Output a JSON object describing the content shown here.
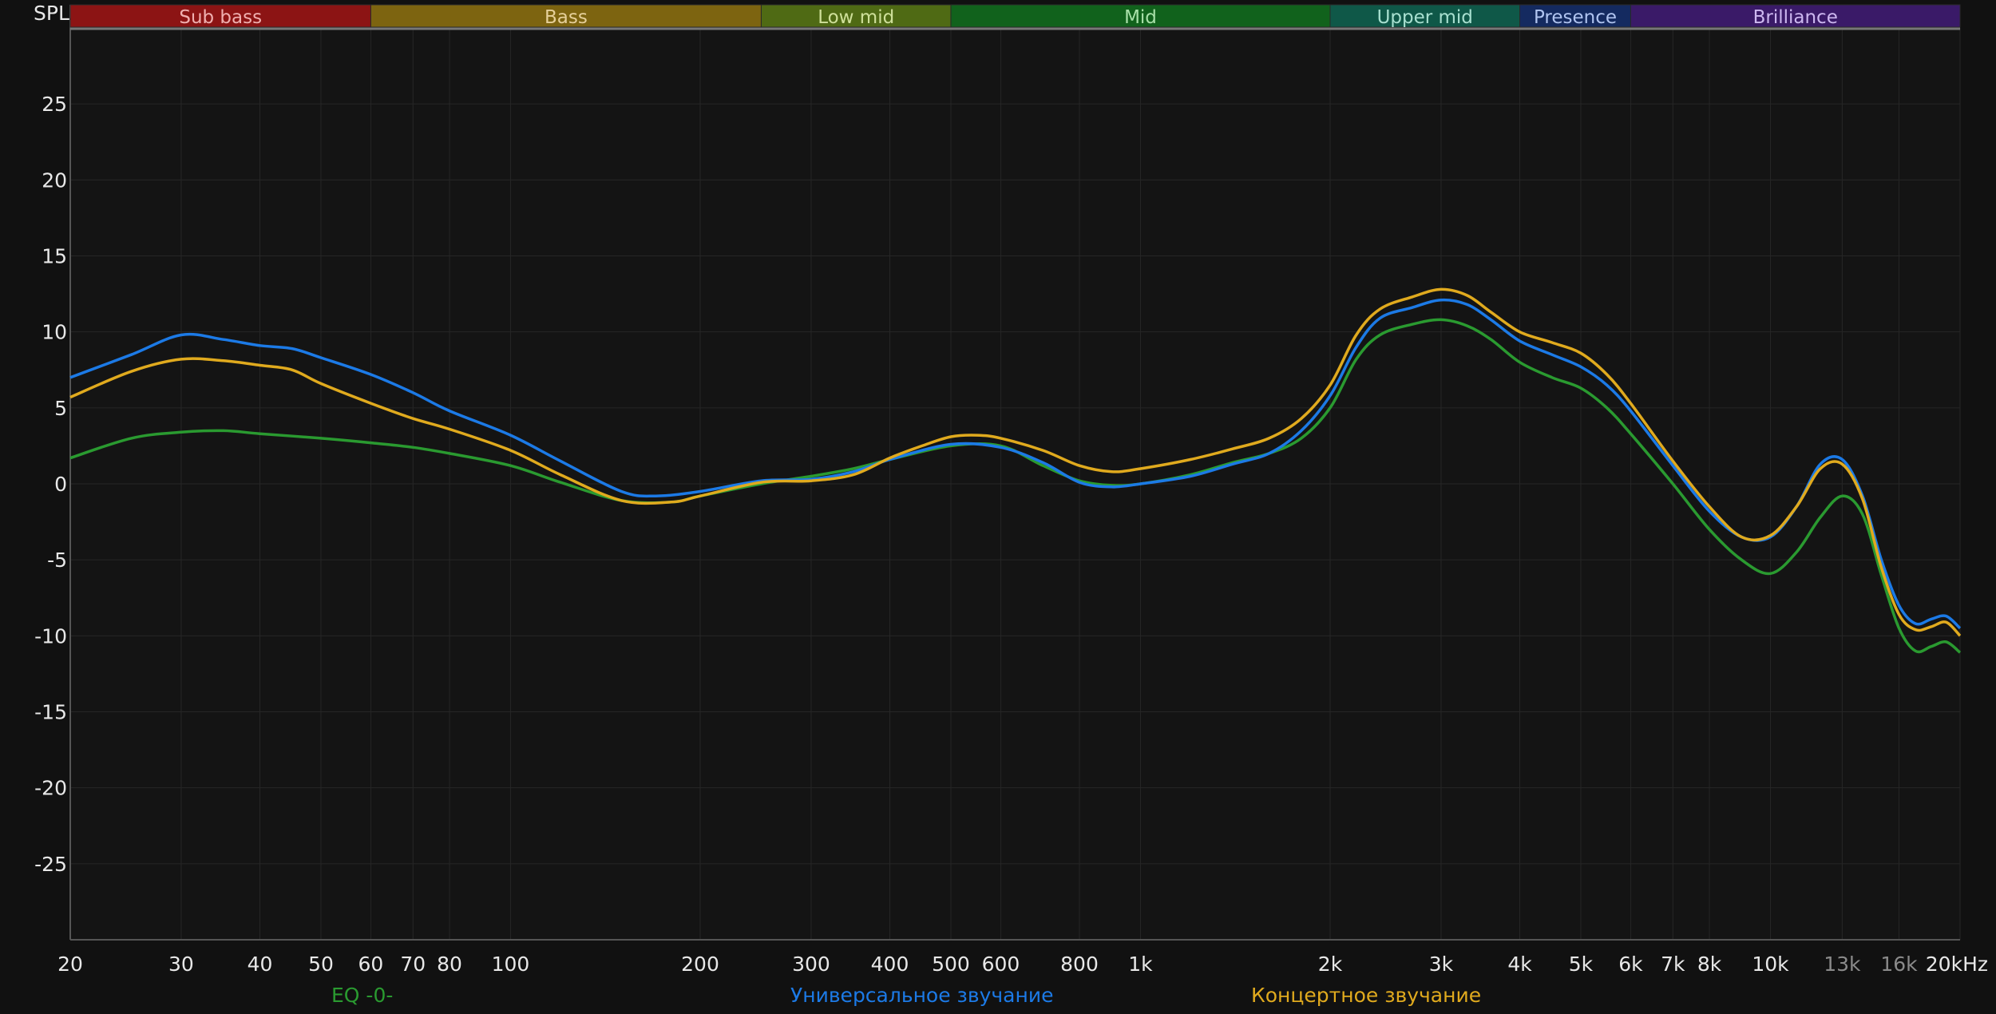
{
  "chart_data": {
    "type": "line",
    "ylabel": "SPL",
    "xscale": "log",
    "xlim": [
      20,
      20000
    ],
    "ylim": [
      -30,
      30
    ],
    "grid": true,
    "legend_placement": "bottom",
    "bands": [
      {
        "name": "Sub bass",
        "from": 20,
        "to": 60,
        "color": "#8c1414",
        "text_color": "#f0b0b0"
      },
      {
        "name": "Bass",
        "from": 60,
        "to": 250,
        "color": "#7d6410",
        "text_color": "#e6d09a"
      },
      {
        "name": "Low mid",
        "from": 250,
        "to": 500,
        "color": "#4f6a14",
        "text_color": "#cfe09a"
      },
      {
        "name": "Mid",
        "from": 500,
        "to": 2000,
        "color": "#11621c",
        "text_color": "#a8e0a8"
      },
      {
        "name": "Upper mid",
        "from": 2000,
        "to": 4000,
        "color": "#0f5848",
        "text_color": "#a8e0d0"
      },
      {
        "name": "Presence",
        "from": 4000,
        "to": 6000,
        "color": "#142a60",
        "text_color": "#b0c4f0"
      },
      {
        "name": "Brilliance",
        "from": 6000,
        "to": 20000,
        "color": "#3a1a68",
        "text_color": "#cdb8f0"
      }
    ],
    "yticks": [
      25,
      20,
      15,
      10,
      5,
      0,
      -5,
      -10,
      -15,
      -20,
      -25
    ],
    "xticks": [
      {
        "f": 20,
        "label": "20",
        "dim": false
      },
      {
        "f": 30,
        "label": "30",
        "dim": false
      },
      {
        "f": 40,
        "label": "40",
        "dim": false
      },
      {
        "f": 50,
        "label": "50",
        "dim": false
      },
      {
        "f": 60,
        "label": "60",
        "dim": false
      },
      {
        "f": 70,
        "label": "70",
        "dim": false
      },
      {
        "f": 80,
        "label": "80",
        "dim": false
      },
      {
        "f": 100,
        "label": "100",
        "dim": false
      },
      {
        "f": 200,
        "label": "200",
        "dim": false
      },
      {
        "f": 300,
        "label": "300",
        "dim": false
      },
      {
        "f": 400,
        "label": "400",
        "dim": false
      },
      {
        "f": 500,
        "label": "500",
        "dim": false
      },
      {
        "f": 600,
        "label": "600",
        "dim": false
      },
      {
        "f": 800,
        "label": "800",
        "dim": false
      },
      {
        "f": 1000,
        "label": "1k",
        "dim": false
      },
      {
        "f": 2000,
        "label": "2k",
        "dim": false
      },
      {
        "f": 3000,
        "label": "3k",
        "dim": false
      },
      {
        "f": 4000,
        "label": "4k",
        "dim": false
      },
      {
        "f": 5000,
        "label": "5k",
        "dim": false
      },
      {
        "f": 6000,
        "label": "6k",
        "dim": false
      },
      {
        "f": 7000,
        "label": "7k",
        "dim": false
      },
      {
        "f": 8000,
        "label": "8k",
        "dim": false
      },
      {
        "f": 10000,
        "label": "10k",
        "dim": false
      },
      {
        "f": 13000,
        "label": "13k",
        "dim": true
      },
      {
        "f": 16000,
        "label": "16k",
        "dim": true
      },
      {
        "f": 20000,
        "label": "20kHz",
        "dim": false
      }
    ],
    "series": [
      {
        "name": "EQ -0-",
        "color": "#2a9a30",
        "points": [
          [
            20,
            1.7
          ],
          [
            25,
            3
          ],
          [
            30,
            3.4
          ],
          [
            35,
            3.5
          ],
          [
            40,
            3.3
          ],
          [
            50,
            3
          ],
          [
            60,
            2.7
          ],
          [
            70,
            2.4
          ],
          [
            80,
            2
          ],
          [
            100,
            1.2
          ],
          [
            120,
            0.1
          ],
          [
            150,
            -1.1
          ],
          [
            180,
            -1.2
          ],
          [
            200,
            -0.8
          ],
          [
            250,
            0
          ],
          [
            300,
            0.5
          ],
          [
            350,
            1
          ],
          [
            400,
            1.6
          ],
          [
            500,
            2.5
          ],
          [
            600,
            2.5
          ],
          [
            700,
            1.2
          ],
          [
            800,
            0.2
          ],
          [
            900,
            -0.1
          ],
          [
            1000,
            0
          ],
          [
            1200,
            0.6
          ],
          [
            1400,
            1.4
          ],
          [
            1600,
            2
          ],
          [
            1800,
            3
          ],
          [
            2000,
            5
          ],
          [
            2200,
            8.2
          ],
          [
            2400,
            9.8
          ],
          [
            2700,
            10.5
          ],
          [
            3000,
            10.8
          ],
          [
            3300,
            10.4
          ],
          [
            3600,
            9.5
          ],
          [
            4000,
            8
          ],
          [
            4500,
            7
          ],
          [
            5000,
            6.3
          ],
          [
            5500,
            5
          ],
          [
            6000,
            3.3
          ],
          [
            7000,
            0
          ],
          [
            8000,
            -3
          ],
          [
            9000,
            -5
          ],
          [
            10000,
            -5.9
          ],
          [
            11000,
            -4.5
          ],
          [
            12000,
            -2.2
          ],
          [
            13000,
            -0.8
          ],
          [
            14000,
            -2
          ],
          [
            15000,
            -6
          ],
          [
            16000,
            -9.5
          ],
          [
            17000,
            -11
          ],
          [
            18000,
            -10.7
          ],
          [
            19000,
            -10.4
          ],
          [
            20000,
            -11.1
          ]
        ]
      },
      {
        "name": "Универсальное звучание",
        "color": "#1c7ae6",
        "points": [
          [
            20,
            7
          ],
          [
            25,
            8.5
          ],
          [
            30,
            9.8
          ],
          [
            35,
            9.5
          ],
          [
            40,
            9.1
          ],
          [
            45,
            8.9
          ],
          [
            50,
            8.3
          ],
          [
            60,
            7.2
          ],
          [
            70,
            6
          ],
          [
            80,
            4.8
          ],
          [
            100,
            3.2
          ],
          [
            120,
            1.5
          ],
          [
            150,
            -0.5
          ],
          [
            170,
            -0.8
          ],
          [
            200,
            -0.5
          ],
          [
            250,
            0.2
          ],
          [
            300,
            0.3
          ],
          [
            350,
            0.8
          ],
          [
            400,
            1.6
          ],
          [
            500,
            2.6
          ],
          [
            600,
            2.4
          ],
          [
            700,
            1.4
          ],
          [
            800,
            0.1
          ],
          [
            900,
            -0.2
          ],
          [
            1000,
            0
          ],
          [
            1200,
            0.5
          ],
          [
            1400,
            1.3
          ],
          [
            1600,
            2
          ],
          [
            1800,
            3.5
          ],
          [
            2000,
            5.8
          ],
          [
            2200,
            9
          ],
          [
            2400,
            10.9
          ],
          [
            2700,
            11.6
          ],
          [
            3000,
            12.1
          ],
          [
            3300,
            11.8
          ],
          [
            3600,
            10.8
          ],
          [
            4000,
            9.4
          ],
          [
            4500,
            8.5
          ],
          [
            5000,
            7.7
          ],
          [
            5500,
            6.5
          ],
          [
            6000,
            4.8
          ],
          [
            7000,
            1.2
          ],
          [
            8000,
            -1.8
          ],
          [
            9000,
            -3.5
          ],
          [
            10000,
            -3.5
          ],
          [
            11000,
            -1.5
          ],
          [
            12000,
            1.3
          ],
          [
            13000,
            1.6
          ],
          [
            14000,
            -0.8
          ],
          [
            15000,
            -5
          ],
          [
            16000,
            -8
          ],
          [
            17000,
            -9.2
          ],
          [
            18000,
            -8.9
          ],
          [
            19000,
            -8.7
          ],
          [
            20000,
            -9.5
          ]
        ]
      },
      {
        "name": "Концертное звучание",
        "color": "#e0aa1e",
        "points": [
          [
            20,
            5.7
          ],
          [
            25,
            7.4
          ],
          [
            30,
            8.2
          ],
          [
            35,
            8.1
          ],
          [
            40,
            7.8
          ],
          [
            45,
            7.5
          ],
          [
            50,
            6.6
          ],
          [
            60,
            5.3
          ],
          [
            70,
            4.3
          ],
          [
            80,
            3.6
          ],
          [
            100,
            2.2
          ],
          [
            120,
            0.6
          ],
          [
            150,
            -1.1
          ],
          [
            180,
            -1.2
          ],
          [
            200,
            -0.8
          ],
          [
            250,
            0.1
          ],
          [
            300,
            0.2
          ],
          [
            350,
            0.6
          ],
          [
            400,
            1.7
          ],
          [
            450,
            2.5
          ],
          [
            500,
            3.1
          ],
          [
            550,
            3.2
          ],
          [
            600,
            3
          ],
          [
            700,
            2.2
          ],
          [
            800,
            1.2
          ],
          [
            900,
            0.8
          ],
          [
            1000,
            1
          ],
          [
            1200,
            1.6
          ],
          [
            1400,
            2.3
          ],
          [
            1600,
            3
          ],
          [
            1800,
            4.3
          ],
          [
            2000,
            6.5
          ],
          [
            2200,
            9.8
          ],
          [
            2400,
            11.5
          ],
          [
            2700,
            12.3
          ],
          [
            3000,
            12.8
          ],
          [
            3300,
            12.4
          ],
          [
            3600,
            11.3
          ],
          [
            4000,
            10
          ],
          [
            4500,
            9.3
          ],
          [
            5000,
            8.6
          ],
          [
            5500,
            7.2
          ],
          [
            6000,
            5.3
          ],
          [
            7000,
            1.5
          ],
          [
            8000,
            -1.5
          ],
          [
            9000,
            -3.5
          ],
          [
            10000,
            -3.4
          ],
          [
            11000,
            -1.5
          ],
          [
            12000,
            1
          ],
          [
            13000,
            1.3
          ],
          [
            14000,
            -1
          ],
          [
            15000,
            -5.5
          ],
          [
            16000,
            -8.6
          ],
          [
            17000,
            -9.6
          ],
          [
            18000,
            -9.4
          ],
          [
            19000,
            -9.1
          ],
          [
            20000,
            -10
          ]
        ]
      }
    ]
  }
}
